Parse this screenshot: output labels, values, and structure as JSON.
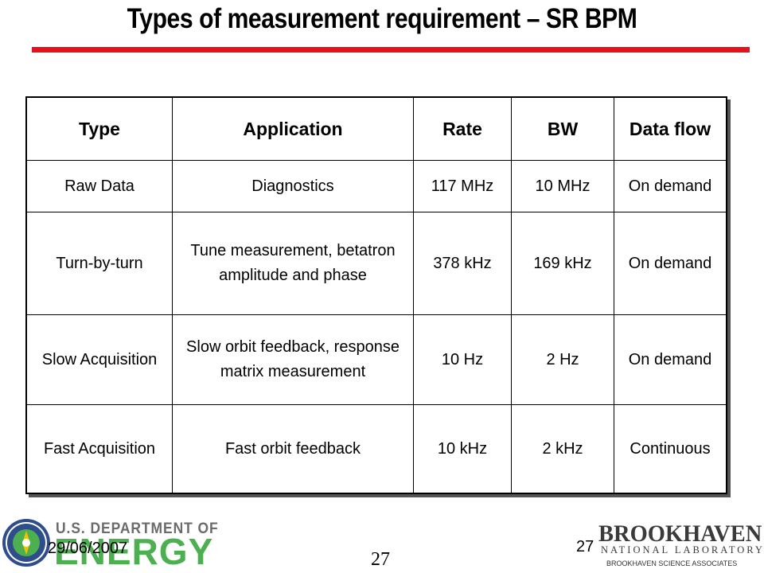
{
  "title": "Types of measurement requirement – SR BPM",
  "table": {
    "headers": [
      "Type",
      "Application",
      "Rate",
      "BW",
      "Data flow"
    ],
    "rows": [
      [
        "Raw Data",
        "Diagnostics",
        "117 MHz",
        "10 MHz",
        "On demand"
      ],
      [
        "Turn-by-turn",
        "Tune measurement, betatron amplitude and phase",
        "378 kHz",
        "169 kHz",
        "On demand"
      ],
      [
        "Slow Acquisition",
        "Slow orbit feedback, response matrix measurement",
        "10 Hz",
        "2 Hz",
        "On demand"
      ],
      [
        "Fast Acquisition",
        "Fast orbit feedback",
        "10 kHz",
        "2 kHz",
        "Continuous"
      ]
    ]
  },
  "footer": {
    "doe_line1": "U.S. DEPARTMENT OF",
    "doe_line2": "ENERGY",
    "date": "29/06/2007",
    "slide_number_center": "27",
    "slide_number_right": "27",
    "bnl_name": "BROOKHAVEN",
    "bnl_lab": "NATIONAL LABORATORY",
    "bnl_associates": "BROOKHAVEN SCIENCE ASSOCIATES"
  },
  "colors": {
    "title_rule": "#e8101a",
    "doe_green": "#4caf50"
  }
}
